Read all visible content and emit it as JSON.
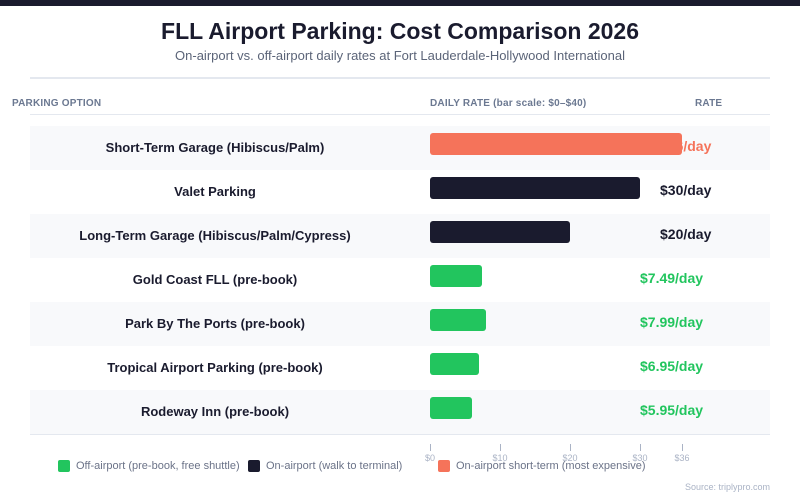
{
  "header": {
    "title": "FLL Airport Parking: Cost Comparison 2026",
    "subtitle": "On-airport vs. off-airport daily rates at Fort Lauderdale-Hollywood International"
  },
  "columns": {
    "option": "PARKING OPTION",
    "daily_rate": "DAILY RATE (bar scale: $0–$40)",
    "rate": "RATE"
  },
  "colors": {
    "short_term": "#f5735a",
    "on_airport": "#1a1b2e",
    "off_airport": "#22c55e"
  },
  "chart_data": {
    "type": "bar",
    "orientation": "horizontal",
    "title": "FLL Airport Parking: Cost Comparison 2026",
    "subtitle": "On-airport vs. off-airport daily rates at Fort Lauderdale-Hollywood International",
    "xlabel": "DAILY RATE (bar scale: $0–$40)",
    "ylabel": "PARKING OPTION",
    "xlim": [
      0,
      40
    ],
    "x_ticks": [
      0,
      10,
      20,
      30,
      36
    ],
    "x_tick_labels": [
      "$0",
      "$10",
      "$20",
      "$30",
      "$36"
    ],
    "grid": false,
    "legend_position": "bottom",
    "categories": [
      "Short-Term Garage (Hibiscus/Palm)",
      "Valet Parking",
      "Long-Term Garage (Hibiscus/Palm/Cypress)",
      "Gold Coast FLL (pre-book)",
      "Park By The Ports (pre-book)",
      "Tropical Airport Parking (pre-book)",
      "Rodeway Inn (pre-book)"
    ],
    "values": [
      36,
      30,
      20,
      7.49,
      7.99,
      6.95,
      5.95
    ],
    "rate_labels": [
      "$36/day",
      "$30/day",
      "$20/day",
      "$7.49/day",
      "$7.99/day",
      "$6.95/day",
      "$5.95/day"
    ],
    "groups": [
      "short_term",
      "on_airport",
      "on_airport",
      "off_airport",
      "off_airport",
      "off_airport",
      "off_airport"
    ],
    "legend": [
      {
        "key": "off_airport",
        "label": "Off-airport (pre-book, free shuttle)"
      },
      {
        "key": "on_airport",
        "label": "On-airport (walk to terminal)"
      },
      {
        "key": "short_term",
        "label": "On-airport short-term (most expensive)"
      }
    ]
  },
  "source": "Source: triplypro.com"
}
